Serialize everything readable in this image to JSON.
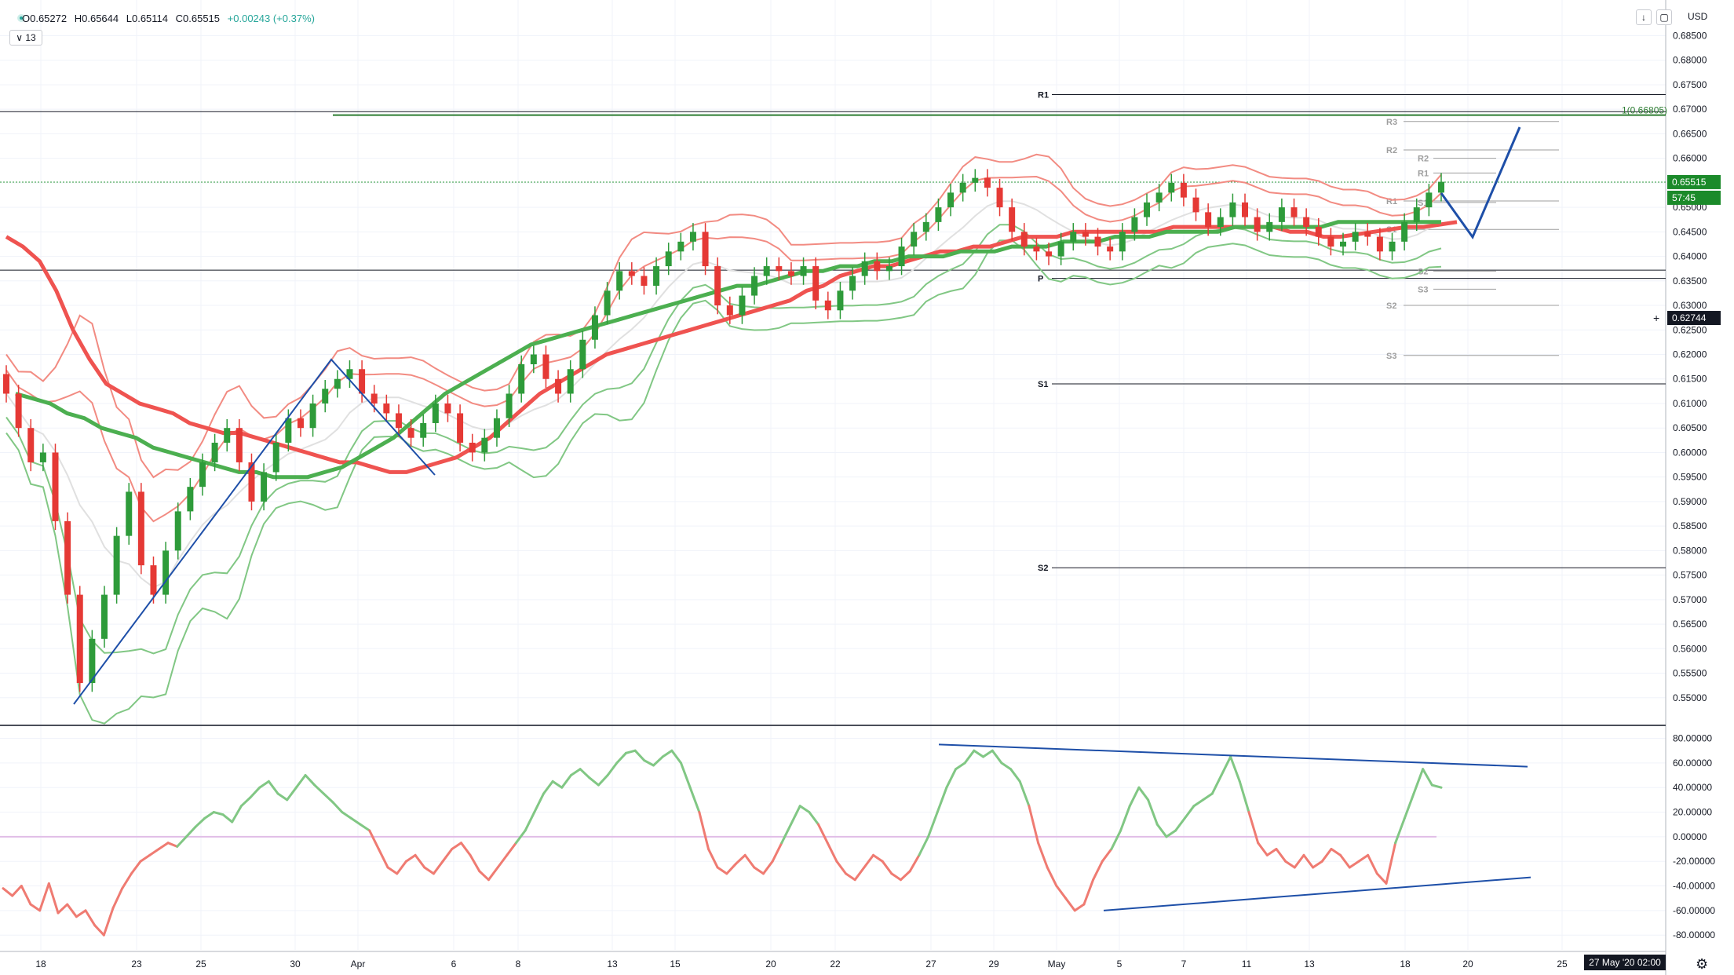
{
  "header": {
    "open": "O0.65272",
    "high": "H0.65644",
    "low": "L0.65114",
    "close": "C0.65515",
    "change": "+0.00243 (+0.37%)",
    "interval": "∨ 13",
    "currency": "USD",
    "download_icon": "arrow-down-icon",
    "fullscreen_icon": "square-icon"
  },
  "footer": {
    "date_label": "27 May '20   02:00",
    "settings_icon": "gear-icon"
  },
  "colors": {
    "bull": "#2e9b3a",
    "bear": "#e53935",
    "sma_red": "#ef5350",
    "sma_green": "#4caf50",
    "blue": "#1e4fa8",
    "band_red": "#f28b82",
    "band_green": "#81c784"
  },
  "chart_data": [
    {
      "type": "line",
      "title": "",
      "instrument": "",
      "ylim": [
        0.545,
        0.691
      ],
      "y_ticks": [
        0.685,
        0.68,
        0.675,
        0.67,
        0.665,
        0.66,
        0.655,
        0.65,
        0.645,
        0.64,
        0.635,
        0.63,
        0.625,
        0.62,
        0.615,
        0.61,
        0.605,
        0.6,
        0.595,
        0.59,
        0.585,
        0.58,
        0.575,
        0.57,
        0.565,
        0.56,
        0.555,
        0.55
      ],
      "y_tick_labels": [
        "0.68500",
        "0.68000",
        "0.67500",
        "0.67000",
        "0.66500",
        "0.66000",
        "0.65500",
        "0.65000",
        "0.64500",
        "0.64000",
        "0.63500",
        "0.63000",
        "0.62500",
        "0.62000",
        "0.61500",
        "0.61000",
        "0.60500",
        "0.60000",
        "0.59500",
        "0.59000",
        "0.58500",
        "0.58000",
        "0.57500",
        "0.57000",
        "0.56500",
        "0.56000",
        "0.55500",
        "0.55000"
      ],
      "x_tick_labels": [
        "18",
        "23",
        "25",
        "30",
        "Apr",
        "6",
        "8",
        "13",
        "15",
        "20",
        "22",
        "27",
        "29",
        "May",
        "5",
        "7",
        "11",
        "13",
        "18",
        "20",
        "25"
      ],
      "price_labels": {
        "last": "0.65515",
        "countdown": "57:45",
        "crosshair": "0.62744"
      },
      "price_levels": {
        "last": 0.65515,
        "crosshair": 0.62744
      },
      "fib_label": "1(0.66805)",
      "pivots_monthly": [
        {
          "label": "R1",
          "value": 0.673
        },
        {
          "label": "P",
          "value": 0.6355
        },
        {
          "label": "S1",
          "value": 0.614
        },
        {
          "label": "S2",
          "value": 0.5765
        }
      ],
      "pivots_weekly": [
        {
          "label": "R3",
          "value": 0.6675
        },
        {
          "label": "R2",
          "value": 0.6617
        },
        {
          "label": "R1",
          "value": 0.6513
        },
        {
          "label": "S1",
          "value": 0.6455
        },
        {
          "label": "S2",
          "value": 0.63
        },
        {
          "label": "S3",
          "value": 0.6198
        }
      ],
      "pivots_daily": [
        {
          "label": "R2",
          "value": 0.66
        },
        {
          "label": "R1",
          "value": 0.657
        },
        {
          "label": "S1",
          "value": 0.651
        },
        {
          "label": "S2",
          "value": 0.637
        },
        {
          "label": "S3",
          "value": 0.6333
        }
      ],
      "horizontal_lines": [
        0.6695,
        0.6688,
        0.6372
      ],
      "series": [
        {
          "values": [
            0.612,
            0.605,
            0.598,
            0.6,
            0.586,
            0.571,
            0.553,
            0.562,
            0.571,
            0.583,
            0.592,
            0.577,
            0.571,
            0.58,
            0.588,
            0.593,
            0.598,
            0.602,
            0.605,
            0.598,
            0.59,
            0.596,
            0.602,
            0.607,
            0.605,
            0.61,
            0.613,
            0.615,
            0.617,
            0.612,
            0.61,
            0.608,
            0.605,
            0.603,
            0.606,
            0.61,
            0.608,
            0.602,
            0.6,
            0.603,
            0.607,
            0.612,
            0.618,
            0.62,
            0.615,
            0.612,
            0.617,
            0.623,
            0.628,
            0.633,
            0.637,
            0.636,
            0.634,
            0.638,
            0.641,
            0.643,
            0.645,
            0.638,
            0.63,
            0.628,
            0.632,
            0.636,
            0.638,
            0.637,
            0.636,
            0.638,
            0.631,
            0.629,
            0.633,
            0.636,
            0.639,
            0.637,
            0.638,
            0.642,
            0.645,
            0.647,
            0.65,
            0.653,
            0.655,
            0.656,
            0.654,
            0.65,
            0.645,
            0.642,
            0.641,
            0.64,
            0.643,
            0.645,
            0.644,
            0.642,
            0.641,
            0.645,
            0.648,
            0.651,
            0.653,
            0.655,
            0.652,
            0.649,
            0.646,
            0.648,
            0.651,
            0.648,
            0.645,
            0.647,
            0.65,
            0.648,
            0.646,
            0.644,
            0.642,
            0.643,
            0.645,
            0.644,
            0.641,
            0.643,
            0.647,
            0.65,
            0.653,
            0.6552
          ]
        },
        {
          "values": [
            0.644,
            0.642,
            0.639,
            0.633,
            0.625,
            0.619,
            0.614,
            0.612,
            0.61,
            0.609,
            0.608,
            0.606,
            0.605,
            0.604,
            0.604,
            0.603,
            0.602,
            0.601,
            0.6,
            0.599,
            0.598,
            0.598,
            0.597,
            0.596,
            0.596,
            0.597,
            0.598,
            0.599,
            0.601,
            0.603,
            0.606,
            0.609,
            0.612,
            0.614,
            0.616,
            0.618,
            0.62,
            0.621,
            0.622,
            0.623,
            0.624,
            0.625,
            0.626,
            0.627,
            0.628,
            0.629,
            0.63,
            0.631,
            0.633,
            0.634,
            0.636,
            0.637,
            0.638,
            0.638,
            0.639,
            0.64,
            0.641,
            0.641,
            0.642,
            0.642,
            0.643,
            0.644,
            0.644,
            0.644,
            0.645,
            0.645,
            0.645,
            0.645,
            0.645,
            0.645,
            0.646,
            0.646,
            0.646,
            0.646,
            0.646,
            0.646,
            0.646,
            0.645,
            0.645,
            0.644,
            0.644,
            0.6445,
            0.645,
            0.6455,
            0.646,
            0.646,
            0.6465,
            0.647
          ]
        },
        {
          "values": [
            0.612,
            0.611,
            0.61,
            0.608,
            0.607,
            0.605,
            0.604,
            0.603,
            0.601,
            0.6,
            0.599,
            0.598,
            0.597,
            0.596,
            0.596,
            0.595,
            0.595,
            0.595,
            0.596,
            0.597,
            0.599,
            0.601,
            0.603,
            0.606,
            0.609,
            0.612,
            0.614,
            0.616,
            0.618,
            0.62,
            0.622,
            0.623,
            0.624,
            0.625,
            0.626,
            0.627,
            0.628,
            0.629,
            0.63,
            0.631,
            0.632,
            0.633,
            0.634,
            0.634,
            0.635,
            0.636,
            0.637,
            0.637,
            0.638,
            0.638,
            0.639,
            0.639,
            0.64,
            0.64,
            0.64,
            0.641,
            0.641,
            0.641,
            0.642,
            0.642,
            0.642,
            0.643,
            0.643,
            0.643,
            0.644,
            0.644,
            0.644,
            0.645,
            0.645,
            0.645,
            0.645,
            0.646,
            0.646,
            0.646,
            0.646,
            0.646,
            0.646,
            0.647,
            0.647,
            0.647,
            0.647,
            0.647,
            0.647,
            0.647
          ]
        }
      ]
    },
    {
      "type": "line",
      "title": "",
      "ylim": [
        -92,
        88
      ],
      "y_ticks": [
        80,
        60,
        40,
        20,
        0,
        -20,
        -40,
        -60,
        -80
      ],
      "y_tick_labels": [
        "80.00000",
        "60.00000",
        "40.00000",
        "20.00000",
        "0.00000",
        "-20.00000",
        "-40.00000",
        "-60.00000",
        "-80.00000"
      ],
      "zero_line": 0,
      "series": [
        {
          "values": [
            -42,
            -48,
            -40,
            -55,
            -60,
            -38,
            -62,
            -55,
            -65,
            -60,
            -72,
            -80,
            -58,
            -42,
            -30,
            -20,
            -15,
            -10,
            -5,
            -8,
            0,
            8,
            15,
            20,
            18,
            12,
            25,
            32,
            40,
            45,
            35,
            30,
            40,
            50,
            42,
            35,
            28,
            20,
            15,
            10,
            5,
            -10,
            -25,
            -30,
            -20,
            -15,
            -25,
            -30,
            -20,
            -10,
            -5,
            -15,
            -28,
            -35,
            -25,
            -15,
            -5,
            5,
            20,
            35,
            45,
            40,
            50,
            55,
            48,
            42,
            50,
            60,
            68,
            70,
            62,
            58,
            65,
            70,
            60,
            40,
            20,
            -10,
            -25,
            -30,
            -22,
            -15,
            -25,
            -30,
            -20,
            -5,
            10,
            25,
            20,
            10,
            -5,
            -20,
            -30,
            -35,
            -25,
            -15,
            -20,
            -30,
            -35,
            -28,
            -15,
            0,
            20,
            40,
            55,
            60,
            70,
            65,
            70,
            60,
            55,
            45,
            25,
            -5,
            -25,
            -40,
            -50,
            -60,
            -55,
            -35,
            -20,
            -10,
            5,
            25,
            40,
            30,
            10,
            0,
            5,
            15,
            25,
            30,
            35,
            50,
            65,
            45,
            20,
            -5,
            -15,
            -10,
            -20,
            -25,
            -15,
            -25,
            -20,
            -10,
            -15,
            -25,
            -20,
            -15,
            -30,
            -38,
            -5,
            15,
            35,
            55,
            42,
            40
          ]
        }
      ],
      "trendlines": [
        {
          "points": [
            [
              0,
              75
            ],
            [
              1,
              57
            ]
          ]
        },
        {
          "points": [
            [
              0,
              -60
            ],
            [
              1,
              -33
            ]
          ]
        }
      ]
    }
  ]
}
